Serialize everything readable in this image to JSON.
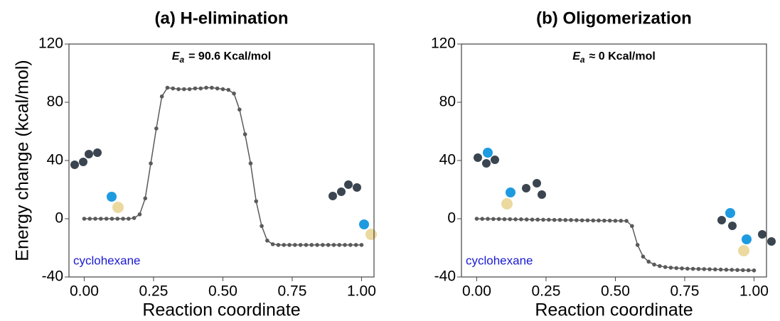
{
  "chart_data": [
    {
      "type": "line",
      "title": "(a) H-elimination",
      "annotation": {
        "symbol": "E",
        "subscript": "a",
        "text": "= 90.6 Kcal/mol"
      },
      "label": "cyclohexane",
      "xlabel": "Reaction coordinate",
      "ylabel": "Energy change (kcal/mol)",
      "xlim": [
        -0.055,
        1.045
      ],
      "ylim": [
        -40,
        120
      ],
      "xticks": [
        {
          "value": 0,
          "label": "0.00"
        },
        {
          "value": 0.25,
          "label": "0.25"
        },
        {
          "value": 0.5,
          "label": "0.50"
        },
        {
          "value": 0.75,
          "label": "0.75"
        },
        {
          "value": 1,
          "label": "1.00"
        }
      ],
      "yticks": [
        -40,
        0,
        40,
        80,
        120
      ],
      "color": "#5a5a5a",
      "x": [
        0,
        0.02,
        0.04,
        0.06,
        0.08,
        0.1,
        0.12,
        0.14,
        0.16,
        0.18,
        0.2,
        0.22,
        0.24,
        0.26,
        0.28,
        0.3,
        0.32,
        0.34,
        0.36,
        0.38,
        0.4,
        0.42,
        0.44,
        0.46,
        0.48,
        0.5,
        0.52,
        0.54,
        0.56,
        0.58,
        0.6,
        0.62,
        0.64,
        0.66,
        0.68,
        0.7,
        0.72,
        0.74,
        0.76,
        0.78,
        0.8,
        0.82,
        0.84,
        0.86,
        0.88,
        0.9,
        0.92,
        0.94,
        0.96,
        0.98,
        1
      ],
      "values": [
        0,
        0,
        0,
        0,
        0,
        0,
        0,
        0,
        0,
        0.5,
        3,
        14,
        38,
        62,
        84,
        90,
        89.5,
        89,
        89,
        89,
        89.5,
        89.5,
        90,
        90,
        89.5,
        89,
        88.5,
        86,
        75,
        58,
        38,
        12,
        -5,
        -15,
        -17.5,
        -18,
        -18,
        -18,
        -18,
        -18,
        -18,
        -18,
        -18,
        -18,
        -18,
        -18,
        -18,
        -18,
        -18,
        -18,
        -18
      ]
    },
    {
      "type": "line",
      "title": "(b) Oligomerization",
      "annotation": {
        "symbol": "E",
        "subscript": "a",
        "text": "≈ 0 Kcal/mol"
      },
      "label": "cyclohexane",
      "xlabel": "Reaction coordinate",
      "xlim": [
        -0.055,
        1.045
      ],
      "ylim": [
        -40,
        120
      ],
      "xticks": [
        {
          "value": 0,
          "label": "0.00"
        },
        {
          "value": 0.25,
          "label": "0.25"
        },
        {
          "value": 0.5,
          "label": "0.50"
        },
        {
          "value": 0.75,
          "label": "0.75"
        },
        {
          "value": 1,
          "label": "1.00"
        }
      ],
      "yticks": [
        -40,
        0,
        40,
        80,
        120
      ],
      "color": "#5a5a5a",
      "x": [
        0,
        0.02,
        0.04,
        0.06,
        0.08,
        0.1,
        0.12,
        0.14,
        0.16,
        0.18,
        0.2,
        0.22,
        0.24,
        0.26,
        0.28,
        0.3,
        0.32,
        0.34,
        0.36,
        0.38,
        0.4,
        0.42,
        0.44,
        0.46,
        0.48,
        0.5,
        0.52,
        0.54,
        0.56,
        0.58,
        0.6,
        0.62,
        0.64,
        0.66,
        0.68,
        0.7,
        0.72,
        0.74,
        0.76,
        0.78,
        0.8,
        0.82,
        0.84,
        0.86,
        0.88,
        0.9,
        0.92,
        0.94,
        0.96,
        0.98,
        1
      ],
      "values": [
        0,
        -0.1,
        -0.1,
        -0.2,
        -0.2,
        -0.3,
        -0.3,
        -0.4,
        -0.4,
        -0.5,
        -0.6,
        -0.6,
        -0.7,
        -0.7,
        -0.8,
        -0.8,
        -0.9,
        -0.9,
        -1,
        -1.1,
        -1.1,
        -1.2,
        -1.2,
        -1.3,
        -1.3,
        -1.4,
        -1.4,
        -1.5,
        -5,
        -18,
        -26,
        -29.5,
        -31.5,
        -32.5,
        -33.2,
        -33.6,
        -33.9,
        -34.1,
        -34.3,
        -34.4,
        -34.5,
        -34.6,
        -34.7,
        -34.8,
        -34.9,
        -35,
        -35.1,
        -35.2,
        -35.3,
        -35.4,
        -35.5
      ]
    }
  ]
}
